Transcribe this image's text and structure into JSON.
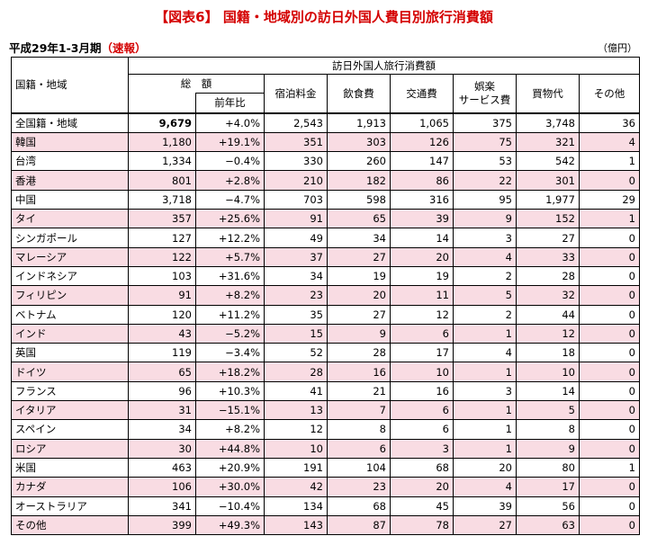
{
  "title": "【図表6】 国籍・地域別の訪日外国人費目別旅行消費額",
  "subtitle_main": "平成29年1-3月期",
  "subtitle_note": "（速報）",
  "unit": "（億円）",
  "headers": {
    "region": "国籍・地域",
    "total": "総　額",
    "yoy": "前年比",
    "group": "訪日外国人旅行消費額",
    "lodging": "宿泊料金",
    "food": "飲食費",
    "transport": "交通費",
    "entertainment_1": "娯楽",
    "entertainment_2": "サービス費",
    "shopping": "買物代",
    "other": "その他"
  },
  "rows": [
    {
      "name": "全国籍・地域",
      "total": "9,679",
      "yoy": "+4.0%",
      "lodging": "2,543",
      "food": "1,913",
      "transport": "1,065",
      "entertainment": "375",
      "shopping": "3,748",
      "other": "36"
    },
    {
      "name": "韓国",
      "total": "1,180",
      "yoy": "+19.1%",
      "lodging": "351",
      "food": "303",
      "transport": "126",
      "entertainment": "75",
      "shopping": "321",
      "other": "4"
    },
    {
      "name": "台湾",
      "total": "1,334",
      "yoy": "−0.4%",
      "lodging": "330",
      "food": "260",
      "transport": "147",
      "entertainment": "53",
      "shopping": "542",
      "other": "1"
    },
    {
      "name": "香港",
      "total": "801",
      "yoy": "+2.8%",
      "lodging": "210",
      "food": "182",
      "transport": "86",
      "entertainment": "22",
      "shopping": "301",
      "other": "0"
    },
    {
      "name": "中国",
      "total": "3,718",
      "yoy": "−4.7%",
      "lodging": "703",
      "food": "598",
      "transport": "316",
      "entertainment": "95",
      "shopping": "1,977",
      "other": "29"
    },
    {
      "name": "タイ",
      "total": "357",
      "yoy": "+25.6%",
      "lodging": "91",
      "food": "65",
      "transport": "39",
      "entertainment": "9",
      "shopping": "152",
      "other": "1"
    },
    {
      "name": "シンガポール",
      "total": "127",
      "yoy": "+12.2%",
      "lodging": "49",
      "food": "34",
      "transport": "14",
      "entertainment": "3",
      "shopping": "27",
      "other": "0"
    },
    {
      "name": "マレーシア",
      "total": "122",
      "yoy": "+5.7%",
      "lodging": "37",
      "food": "27",
      "transport": "20",
      "entertainment": "4",
      "shopping": "33",
      "other": "0"
    },
    {
      "name": "インドネシア",
      "total": "103",
      "yoy": "+31.6%",
      "lodging": "34",
      "food": "19",
      "transport": "19",
      "entertainment": "2",
      "shopping": "28",
      "other": "0"
    },
    {
      "name": "フィリピン",
      "total": "91",
      "yoy": "+8.2%",
      "lodging": "23",
      "food": "20",
      "transport": "11",
      "entertainment": "5",
      "shopping": "32",
      "other": "0"
    },
    {
      "name": "ベトナム",
      "total": "120",
      "yoy": "+11.2%",
      "lodging": "35",
      "food": "27",
      "transport": "12",
      "entertainment": "2",
      "shopping": "44",
      "other": "0"
    },
    {
      "name": "インド",
      "total": "43",
      "yoy": "−5.2%",
      "lodging": "15",
      "food": "9",
      "transport": "6",
      "entertainment": "1",
      "shopping": "12",
      "other": "0"
    },
    {
      "name": "英国",
      "total": "119",
      "yoy": "−3.4%",
      "lodging": "52",
      "food": "28",
      "transport": "17",
      "entertainment": "4",
      "shopping": "18",
      "other": "0"
    },
    {
      "name": "ドイツ",
      "total": "65",
      "yoy": "+18.2%",
      "lodging": "28",
      "food": "16",
      "transport": "10",
      "entertainment": "1",
      "shopping": "10",
      "other": "0"
    },
    {
      "name": "フランス",
      "total": "96",
      "yoy": "+10.3%",
      "lodging": "41",
      "food": "21",
      "transport": "16",
      "entertainment": "3",
      "shopping": "14",
      "other": "0"
    },
    {
      "name": "イタリア",
      "total": "31",
      "yoy": "−15.1%",
      "lodging": "13",
      "food": "7",
      "transport": "6",
      "entertainment": "1",
      "shopping": "5",
      "other": "0"
    },
    {
      "name": "スペイン",
      "total": "34",
      "yoy": "+8.2%",
      "lodging": "12",
      "food": "8",
      "transport": "6",
      "entertainment": "1",
      "shopping": "8",
      "other": "0"
    },
    {
      "name": "ロシア",
      "total": "30",
      "yoy": "+44.8%",
      "lodging": "10",
      "food": "6",
      "transport": "3",
      "entertainment": "1",
      "shopping": "9",
      "other": "0"
    },
    {
      "name": "米国",
      "total": "463",
      "yoy": "+20.9%",
      "lodging": "191",
      "food": "104",
      "transport": "68",
      "entertainment": "20",
      "shopping": "80",
      "other": "1"
    },
    {
      "name": "カナダ",
      "total": "106",
      "yoy": "+30.0%",
      "lodging": "42",
      "food": "23",
      "transport": "20",
      "entertainment": "4",
      "shopping": "17",
      "other": "0"
    },
    {
      "name": "オーストラリア",
      "total": "341",
      "yoy": "−10.4%",
      "lodging": "134",
      "food": "68",
      "transport": "45",
      "entertainment": "39",
      "shopping": "56",
      "other": "0"
    },
    {
      "name": "その他",
      "total": "399",
      "yoy": "+49.3%",
      "lodging": "143",
      "food": "87",
      "transport": "78",
      "entertainment": "27",
      "shopping": "63",
      "other": "0"
    }
  ],
  "colors": {
    "title": "#d40000",
    "row_highlight": "#f9dce3"
  }
}
